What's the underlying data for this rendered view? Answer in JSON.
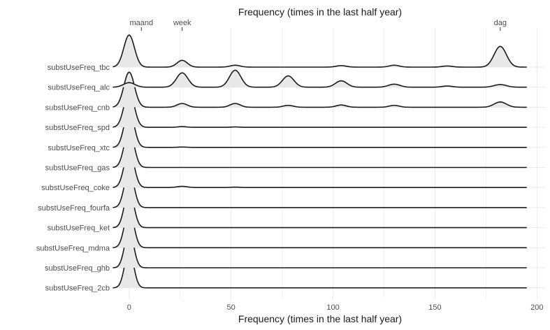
{
  "chart_data": {
    "type": "ridgeline",
    "title_top": "Frequency (times in the last half year)",
    "xlabel": "Frequency (times in the last half year)",
    "ylabel": "",
    "xlim": [
      -8.5,
      204
    ],
    "grid": true,
    "x_ticks": [
      0,
      50,
      100,
      150,
      200
    ],
    "top_axis": [
      {
        "label": "maand",
        "value": 6
      },
      {
        "label": "week",
        "value": 26
      },
      {
        "label": "dag",
        "value": 182
      }
    ],
    "x_range": [
      -8,
      195
    ],
    "series": [
      {
        "name": "substUseFreq_2cb",
        "peaks": [
          {
            "x": 0,
            "h": 1.0,
            "w": 2.2
          }
        ]
      },
      {
        "name": "substUseFreq_ghb",
        "peaks": [
          {
            "x": 0,
            "h": 1.0,
            "w": 2.2
          }
        ]
      },
      {
        "name": "substUseFreq_mdma",
        "peaks": [
          {
            "x": 0,
            "h": 1.0,
            "w": 2.3
          }
        ]
      },
      {
        "name": "substUseFreq_ket",
        "peaks": [
          {
            "x": 0,
            "h": 1.0,
            "w": 2.3
          }
        ]
      },
      {
        "name": "substUseFreq_fourfa",
        "peaks": [
          {
            "x": 0,
            "h": 1.0,
            "w": 2.3
          }
        ]
      },
      {
        "name": "substUseFreq_coke",
        "peaks": [
          {
            "x": 0,
            "h": 1.0,
            "w": 2.4
          },
          {
            "x": 26,
            "h": 0.03,
            "w": 2.5
          },
          {
            "x": 52,
            "h": 0.01,
            "w": 2
          }
        ]
      },
      {
        "name": "substUseFreq_gas",
        "peaks": [
          {
            "x": 0,
            "h": 1.0,
            "w": 2.4
          }
        ]
      },
      {
        "name": "substUseFreq_xtc",
        "peaks": [
          {
            "x": 0,
            "h": 1.0,
            "w": 2.4
          },
          {
            "x": 26,
            "h": 0.01,
            "w": 2
          }
        ]
      },
      {
        "name": "substUseFreq_spd",
        "peaks": [
          {
            "x": 0,
            "h": 0.95,
            "w": 2.5
          },
          {
            "x": 26,
            "h": 0.02,
            "w": 2
          },
          {
            "x": 52,
            "h": 0.01,
            "w": 2
          }
        ]
      },
      {
        "name": "substUseFreq_cnb",
        "peaks": [
          {
            "x": 0,
            "h": 0.93,
            "w": 2.6
          },
          {
            "x": 26,
            "h": 0.1,
            "w": 2.5
          },
          {
            "x": 52,
            "h": 0.1,
            "w": 2.5
          },
          {
            "x": 78,
            "h": 0.05,
            "w": 2.5
          },
          {
            "x": 104,
            "h": 0.06,
            "w": 2.5
          },
          {
            "x": 130,
            "h": 0.05,
            "w": 2.5
          },
          {
            "x": 182,
            "h": 0.14,
            "w": 3
          }
        ]
      },
      {
        "name": "substUseFreq_alc",
        "peaks": [
          {
            "x": 0,
            "h": 0.12,
            "w": 2.8
          },
          {
            "x": 26,
            "h": 0.38,
            "w": 2.8
          },
          {
            "x": 52,
            "h": 0.45,
            "w": 2.8
          },
          {
            "x": 78,
            "h": 0.3,
            "w": 2.8
          },
          {
            "x": 104,
            "h": 0.17,
            "w": 2.8
          },
          {
            "x": 130,
            "h": 0.08,
            "w": 2.8
          },
          {
            "x": 156,
            "h": 0.03,
            "w": 2.5
          },
          {
            "x": 182,
            "h": 0.07,
            "w": 3
          }
        ]
      },
      {
        "name": "substUseFreq_tbc",
        "peaks": [
          {
            "x": 0,
            "h": 0.85,
            "w": 2.6
          },
          {
            "x": 26,
            "h": 0.18,
            "w": 2.5
          },
          {
            "x": 52,
            "h": 0.05,
            "w": 2.5
          },
          {
            "x": 104,
            "h": 0.04,
            "w": 2.5
          },
          {
            "x": 130,
            "h": 0.05,
            "w": 2.5
          },
          {
            "x": 156,
            "h": 0.03,
            "w": 2.5
          },
          {
            "x": 182,
            "h": 0.55,
            "w": 3
          }
        ]
      }
    ]
  },
  "colors": {
    "fill": "#e8e8e8",
    "line": "#1a1a1a",
    "grid": "#ebebeb"
  }
}
